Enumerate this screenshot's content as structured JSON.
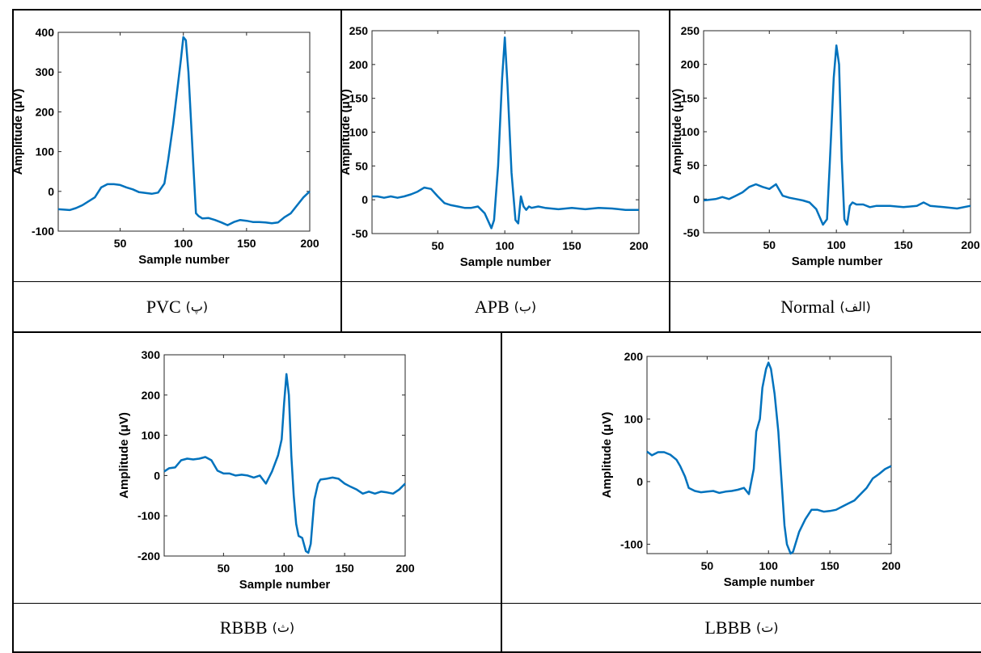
{
  "chart_data": [
    {
      "type": "line",
      "caption": "PVC",
      "caption_sub": "(پ)",
      "xlabel": "Sample number",
      "ylabel": "Amplitude (μV)",
      "xlim": [
        1,
        200
      ],
      "ylim": [
        -100,
        400
      ],
      "xticks": [
        50,
        100,
        150,
        200
      ],
      "yticks": [
        -100,
        0,
        100,
        200,
        300,
        400
      ],
      "color": "#0072BD",
      "x": [
        1,
        10,
        15,
        20,
        30,
        35,
        40,
        45,
        50,
        55,
        60,
        65,
        70,
        75,
        80,
        85,
        88,
        92,
        95,
        98,
        100,
        102,
        104,
        106,
        108,
        110,
        112,
        115,
        120,
        125,
        130,
        135,
        140,
        145,
        150,
        155,
        160,
        165,
        170,
        175,
        180,
        185,
        190,
        195,
        200
      ],
      "y": [
        -45,
        -47,
        -42,
        -35,
        -15,
        10,
        18,
        18,
        16,
        10,
        5,
        -2,
        -4,
        -6,
        -3,
        20,
        80,
        170,
        250,
        330,
        388,
        380,
        300,
        180,
        60,
        -55,
        -62,
        -68,
        -67,
        -72,
        -78,
        -85,
        -77,
        -72,
        -74,
        -77,
        -77,
        -78,
        -80,
        -78,
        -65,
        -55,
        -35,
        -15,
        0
      ]
    },
    {
      "type": "line",
      "caption": "APB",
      "caption_sub": "(ب)",
      "xlabel": "Sample number",
      "ylabel": "Amplitude (μV)",
      "xlim": [
        1,
        200
      ],
      "ylim": [
        -50,
        250
      ],
      "xticks": [
        50,
        100,
        150,
        200
      ],
      "yticks": [
        -50,
        0,
        50,
        100,
        150,
        200,
        250
      ],
      "color": "#0072BD",
      "x": [
        1,
        5,
        10,
        15,
        20,
        25,
        30,
        35,
        40,
        45,
        50,
        55,
        60,
        65,
        70,
        75,
        80,
        85,
        90,
        92,
        95,
        98,
        100,
        102,
        105,
        108,
        110,
        112,
        114,
        116,
        118,
        120,
        125,
        130,
        140,
        150,
        160,
        170,
        180,
        190,
        200
      ],
      "y": [
        5,
        5,
        3,
        5,
        3,
        5,
        8,
        12,
        18,
        16,
        5,
        -5,
        -8,
        -10,
        -12,
        -12,
        -10,
        -20,
        -42,
        -30,
        50,
        180,
        240,
        170,
        40,
        -30,
        -35,
        5,
        -10,
        -15,
        -10,
        -12,
        -10,
        -12,
        -14,
        -12,
        -14,
        -12,
        -13,
        -15,
        -15
      ]
    },
    {
      "type": "line",
      "caption": "Normal",
      "caption_sub": "(الف)",
      "xlabel": "Sample number",
      "ylabel": "Amplitude (μV)",
      "xlim": [
        1,
        200
      ],
      "ylim": [
        -50,
        250
      ],
      "xticks": [
        50,
        100,
        150,
        200
      ],
      "yticks": [
        -50,
        0,
        50,
        100,
        150,
        200,
        250
      ],
      "color": "#0072BD",
      "x": [
        1,
        5,
        10,
        15,
        20,
        25,
        30,
        35,
        40,
        45,
        50,
        55,
        60,
        65,
        70,
        75,
        80,
        85,
        90,
        93,
        95,
        98,
        100,
        102,
        104,
        106,
        108,
        110,
        112,
        115,
        120,
        125,
        130,
        140,
        150,
        160,
        165,
        170,
        180,
        190,
        200
      ],
      "y": [
        -2,
        -1,
        0,
        3,
        0,
        5,
        10,
        18,
        22,
        18,
        15,
        22,
        5,
        2,
        0,
        -2,
        -5,
        -15,
        -38,
        -30,
        50,
        180,
        228,
        200,
        60,
        -30,
        -38,
        -10,
        -5,
        -8,
        -8,
        -12,
        -10,
        -10,
        -12,
        -10,
        -5,
        -10,
        -12,
        -14,
        -10
      ]
    },
    {
      "type": "line",
      "caption": "RBBB",
      "caption_sub": "(ث)",
      "xlabel": "Sample number",
      "ylabel": "Amplitude (μV)",
      "xlim": [
        1,
        200
      ],
      "ylim": [
        -200,
        300
      ],
      "xticks": [
        50,
        100,
        150,
        200
      ],
      "yticks": [
        -200,
        -100,
        0,
        100,
        200,
        300
      ],
      "color": "#0072BD",
      "x": [
        1,
        5,
        10,
        15,
        20,
        25,
        30,
        35,
        40,
        45,
        50,
        55,
        60,
        65,
        70,
        75,
        80,
        85,
        90,
        95,
        98,
        100,
        102,
        104,
        106,
        108,
        110,
        112,
        115,
        118,
        120,
        122,
        125,
        128,
        130,
        135,
        140,
        145,
        150,
        155,
        160,
        165,
        170,
        175,
        180,
        185,
        190,
        195,
        200
      ],
      "y": [
        10,
        18,
        20,
        38,
        42,
        40,
        42,
        46,
        38,
        12,
        5,
        5,
        0,
        2,
        0,
        -5,
        0,
        -20,
        10,
        50,
        90,
        180,
        252,
        200,
        50,
        -50,
        -120,
        -150,
        -155,
        -188,
        -192,
        -170,
        -60,
        -20,
        -10,
        -8,
        -5,
        -8,
        -20,
        -28,
        -35,
        -45,
        -40,
        -45,
        -40,
        -42,
        -45,
        -35,
        -20
      ]
    },
    {
      "type": "line",
      "caption": "LBBB",
      "caption_sub": "(ت)",
      "xlabel": "Sample number",
      "ylabel": "Amplitude (μV)",
      "xlim": [
        1,
        200
      ],
      "ylim": [
        -115,
        200
      ],
      "xticks": [
        50,
        100,
        150,
        200
      ],
      "yticks": [
        -100,
        0,
        100,
        200
      ],
      "color": "#0072BD",
      "x": [
        1,
        5,
        10,
        15,
        20,
        25,
        28,
        32,
        35,
        40,
        45,
        50,
        55,
        60,
        65,
        70,
        75,
        80,
        84,
        88,
        90,
        93,
        95,
        98,
        100,
        102,
        105,
        108,
        110,
        113,
        115,
        118,
        120,
        125,
        130,
        135,
        140,
        145,
        150,
        155,
        160,
        165,
        170,
        175,
        180,
        185,
        190,
        195,
        200
      ],
      "y": [
        48,
        42,
        47,
        47,
        43,
        35,
        25,
        8,
        -10,
        -15,
        -17,
        -16,
        -15,
        -18,
        -16,
        -15,
        -13,
        -10,
        -20,
        20,
        80,
        100,
        150,
        180,
        190,
        180,
        140,
        80,
        20,
        -70,
        -100,
        -115,
        -112,
        -80,
        -60,
        -45,
        -45,
        -48,
        -47,
        -45,
        -40,
        -35,
        -30,
        -20,
        -10,
        5,
        12,
        20,
        25
      ]
    }
  ]
}
